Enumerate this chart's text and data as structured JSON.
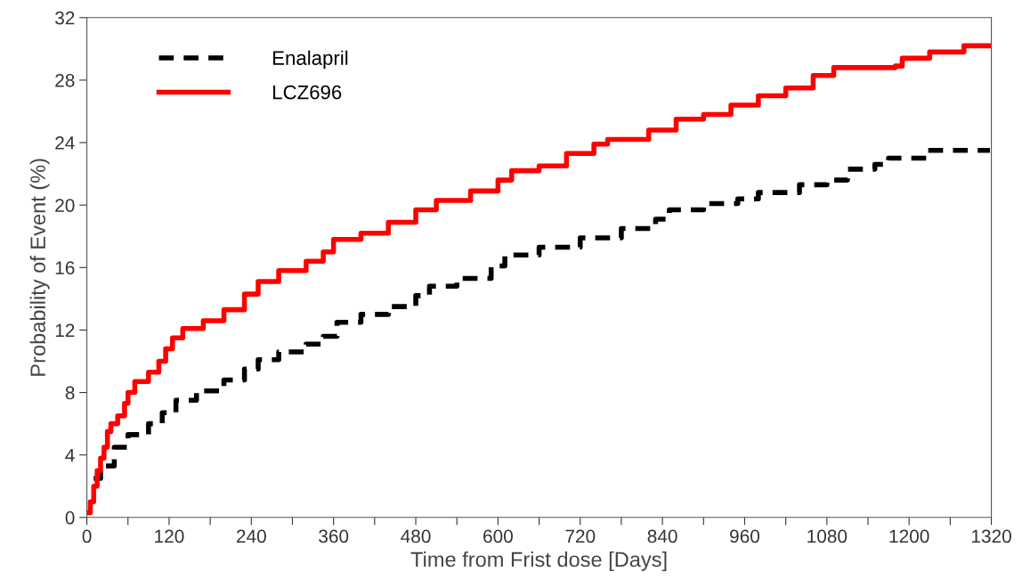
{
  "chart_data": {
    "type": "step",
    "xlabel": "Time from Frist dose [Days]",
    "ylabel": "Probability of Event (%)",
    "xlim": [
      0,
      1320
    ],
    "ylim": [
      0,
      32
    ],
    "xticks": [
      0,
      {
        "value": 60,
        "label": null
      },
      120,
      {
        "value": 180,
        "label": null
      },
      240,
      {
        "value": 300,
        "label": null
      },
      360,
      {
        "value": 420,
        "label": null
      },
      480,
      {
        "value": 540,
        "label": null
      },
      600,
      {
        "value": 660,
        "label": null
      },
      720,
      {
        "value": 780,
        "label": null
      },
      840,
      {
        "value": 900,
        "label": null
      },
      960,
      {
        "value": 1020,
        "label": null
      },
      1080,
      {
        "value": 1140,
        "label": null
      },
      1200,
      {
        "value": 1260,
        "label": null
      },
      1320
    ],
    "yticks": [
      0,
      4,
      8,
      12,
      16,
      20,
      24,
      28,
      32
    ],
    "legend": "top left",
    "grid": false,
    "series": [
      {
        "name": "Enalapril",
        "color": "#000000",
        "line_style": "dashed",
        "x": [
          10,
          20,
          40,
          60,
          90,
          110,
          130,
          160,
          200,
          230,
          250,
          280,
          320,
          345,
          365,
          400,
          440,
          480,
          500,
          540,
          590,
          610,
          660,
          720,
          780,
          830,
          850,
          900,
          950,
          980,
          1040,
          1080,
          1110,
          1150,
          1170,
          1200,
          1225,
          1318
        ],
        "values": [
          2.5,
          3.3,
          4.5,
          5.3,
          6,
          6.7,
          7.5,
          8.1,
          8.8,
          9.5,
          10.1,
          10.6,
          11.1,
          11.6,
          12.5,
          13,
          13.5,
          14.2,
          14.8,
          15.3,
          16.1,
          16.8,
          17.3,
          17.9,
          18.5,
          19.1,
          19.7,
          20.1,
          20.4,
          20.8,
          21.3,
          21.6,
          22.3,
          22.6,
          23,
          23,
          23.5,
          23.5
        ]
      },
      {
        "name": "LCZ696",
        "color": "#ff0000",
        "line_style": "solid",
        "x": [
          0,
          5,
          10,
          15,
          20,
          25,
          30,
          35,
          45,
          55,
          60,
          70,
          90,
          105,
          115,
          125,
          140,
          170,
          200,
          230,
          250,
          280,
          320,
          345,
          360,
          400,
          440,
          480,
          510,
          560,
          600,
          620,
          660,
          700,
          740,
          760,
          820,
          860,
          900,
          940,
          980,
          1020,
          1060,
          1090,
          1180,
          1190,
          1230,
          1280,
          1318
        ],
        "values": [
          0.3,
          1,
          2,
          3,
          3.8,
          4.5,
          5.5,
          6,
          6.5,
          7.3,
          8,
          8.7,
          9.3,
          10,
          10.8,
          11.5,
          12.1,
          12.6,
          13.3,
          14.3,
          15.1,
          15.8,
          16.4,
          17,
          17.8,
          18.2,
          18.9,
          19.7,
          20.3,
          20.9,
          21.6,
          22.2,
          22.5,
          23.3,
          23.9,
          24.2,
          24.8,
          25.5,
          25.8,
          26.4,
          27,
          27.5,
          28.3,
          28.8,
          28.9,
          29.4,
          29.8,
          30.2,
          30.2
        ]
      }
    ]
  }
}
